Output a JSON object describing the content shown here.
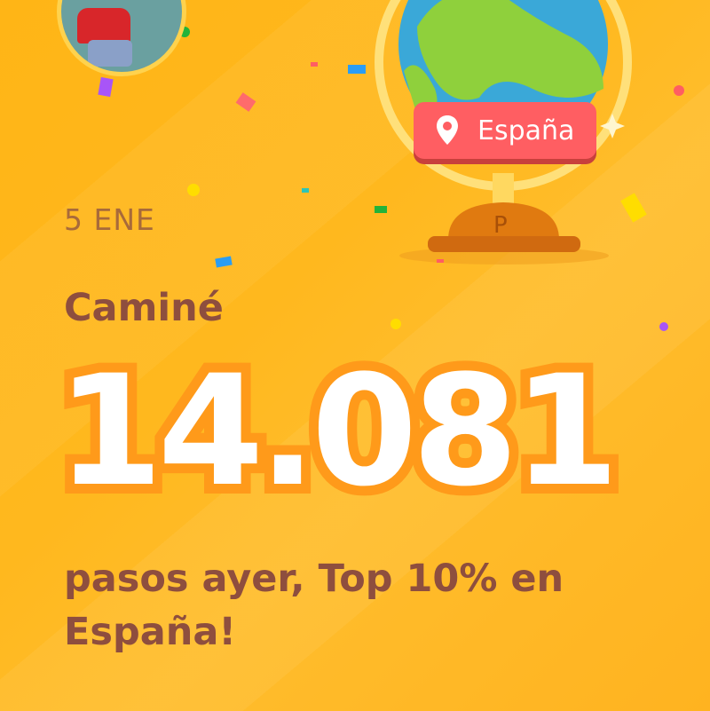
{
  "date": "5 ENE",
  "headline": "Caminé",
  "steps": "14.081",
  "description": "pasos ayer, Top 10% en España!",
  "location_badge": {
    "label": "España",
    "icon": "location-pin-icon"
  },
  "colors": {
    "background": "#ffb81e",
    "text": "#8e4e3e",
    "badge": "#ff5e62",
    "number_outline": "#ff9a1a"
  }
}
